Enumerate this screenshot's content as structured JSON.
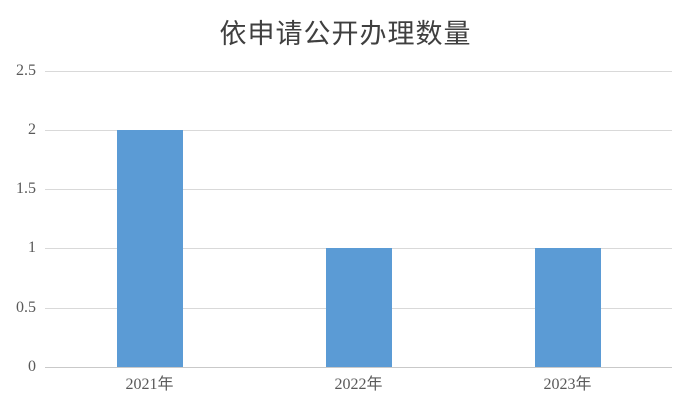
{
  "chart_data": {
    "type": "bar",
    "title": "依申请公开办理数量",
    "categories": [
      "2021年",
      "2022年",
      "2023年"
    ],
    "values": [
      2,
      1,
      1
    ],
    "xlabel": "",
    "ylabel": "",
    "ylim": [
      0,
      2.5
    ],
    "ytick_step": 0.5,
    "yticks": [
      0,
      0.5,
      1,
      1.5,
      2,
      2.5
    ],
    "grid": "horizontal",
    "legend": "none",
    "series_name": ""
  },
  "colors": {
    "bar": "#5b9bd5",
    "gridline": "#d9d9d9",
    "axis_line": "#c9c9c9",
    "title_text": "#3f3f3f",
    "tick_text": "#595959",
    "background": "#ffffff"
  }
}
